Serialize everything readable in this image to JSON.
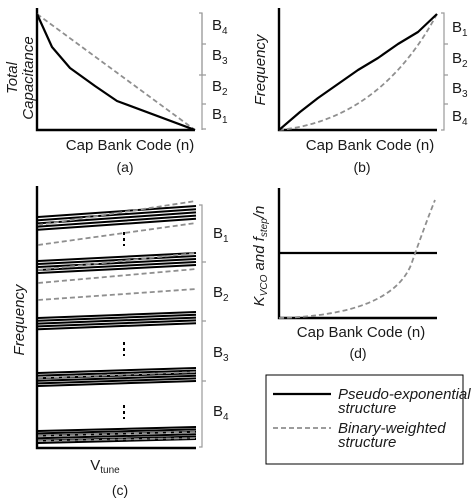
{
  "panel_a": {
    "ylabel_line1": "Total",
    "ylabel_line2": "Capacitance",
    "xlabel": "Cap Bank Code (n)",
    "caption": "(a)",
    "bands": [
      "B",
      "B",
      "B",
      "B"
    ],
    "band_subs": [
      "4",
      "3",
      "2",
      "1"
    ]
  },
  "panel_b": {
    "ylabel": "Frequency",
    "xlabel": "Cap Bank Code (n)",
    "caption": "(b)",
    "bands": [
      "B",
      "B",
      "B",
      "B"
    ],
    "band_subs": [
      "1",
      "2",
      "3",
      "4"
    ]
  },
  "panel_c": {
    "ylabel": "Frequency",
    "xlabel_main": "V",
    "xlabel_sub": "tune",
    "caption": "(c)",
    "bands": [
      "B",
      "B",
      "B",
      "B"
    ],
    "band_subs": [
      "1",
      "2",
      "3",
      "4"
    ]
  },
  "panel_d": {
    "ylabel_k": "K",
    "ylabel_k_sub": "VCO",
    "ylabel_and": " and f",
    "ylabel_f_sub": "step",
    "ylabel_n": "/n",
    "xlabel": "Cap Bank Code (n)",
    "caption": "(d)"
  },
  "legend": {
    "solid_line1": "Pseudo-exponential",
    "solid_line2": "structure",
    "dashed_line1": "Binary-weighted",
    "dashed_line2": "structure"
  },
  "colors": {
    "solid": "#000000",
    "dashed": "#8f8f8f"
  }
}
